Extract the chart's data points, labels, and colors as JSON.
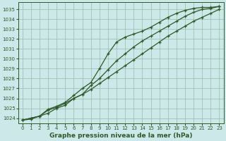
{
  "title": "Graphe pression niveau de la mer (hPa)",
  "bg_color": "#cde8e8",
  "grid_color": "#99bbaa",
  "line_color": "#2d5a27",
  "xlim": [
    -0.5,
    23.5
  ],
  "ylim": [
    1023.5,
    1035.7
  ],
  "xticks": [
    0,
    1,
    2,
    3,
    4,
    5,
    6,
    7,
    8,
    9,
    10,
    11,
    12,
    13,
    14,
    15,
    16,
    17,
    18,
    19,
    20,
    21,
    22,
    23
  ],
  "yticks": [
    1024,
    1025,
    1026,
    1027,
    1028,
    1029,
    1030,
    1031,
    1032,
    1033,
    1034,
    1035
  ],
  "series1_x": [
    0,
    1,
    2,
    3,
    4,
    5,
    6,
    7,
    8,
    9,
    10,
    11,
    12,
    13,
    14,
    15,
    16,
    17,
    18,
    19,
    20,
    21,
    22,
    23
  ],
  "series1_y": [
    1023.8,
    1023.9,
    1024.2,
    1024.8,
    1025.1,
    1025.5,
    1026.0,
    1026.4,
    1026.9,
    1027.5,
    1028.1,
    1028.7,
    1029.3,
    1029.9,
    1030.5,
    1031.1,
    1031.7,
    1032.3,
    1032.8,
    1033.3,
    1033.8,
    1034.2,
    1034.6,
    1035.0
  ],
  "series2_x": [
    0,
    1,
    2,
    3,
    4,
    5,
    6,
    7,
    8,
    9,
    10,
    11,
    12,
    13,
    14,
    15,
    16,
    17,
    18,
    19,
    20,
    21,
    22,
    23
  ],
  "series2_y": [
    1023.8,
    1024.0,
    1024.2,
    1024.9,
    1025.2,
    1025.6,
    1026.3,
    1027.0,
    1027.6,
    1029.0,
    1030.5,
    1031.7,
    1032.2,
    1032.5,
    1032.8,
    1033.2,
    1033.7,
    1034.2,
    1034.6,
    1034.9,
    1035.1,
    1035.2,
    1035.2,
    1035.3
  ],
  "series3_x": [
    0,
    1,
    2,
    3,
    4,
    5,
    6,
    7,
    8,
    9,
    10,
    11,
    12,
    13,
    14,
    15,
    16,
    17,
    18,
    19,
    20,
    21,
    22,
    23
  ],
  "series3_y": [
    1023.8,
    1024.0,
    1024.2,
    1024.5,
    1025.0,
    1025.3,
    1026.0,
    1026.4,
    1027.3,
    1028.0,
    1028.9,
    1029.8,
    1030.5,
    1031.2,
    1031.8,
    1032.3,
    1032.8,
    1033.3,
    1033.8,
    1034.3,
    1034.7,
    1035.0,
    1035.1,
    1035.3
  ]
}
